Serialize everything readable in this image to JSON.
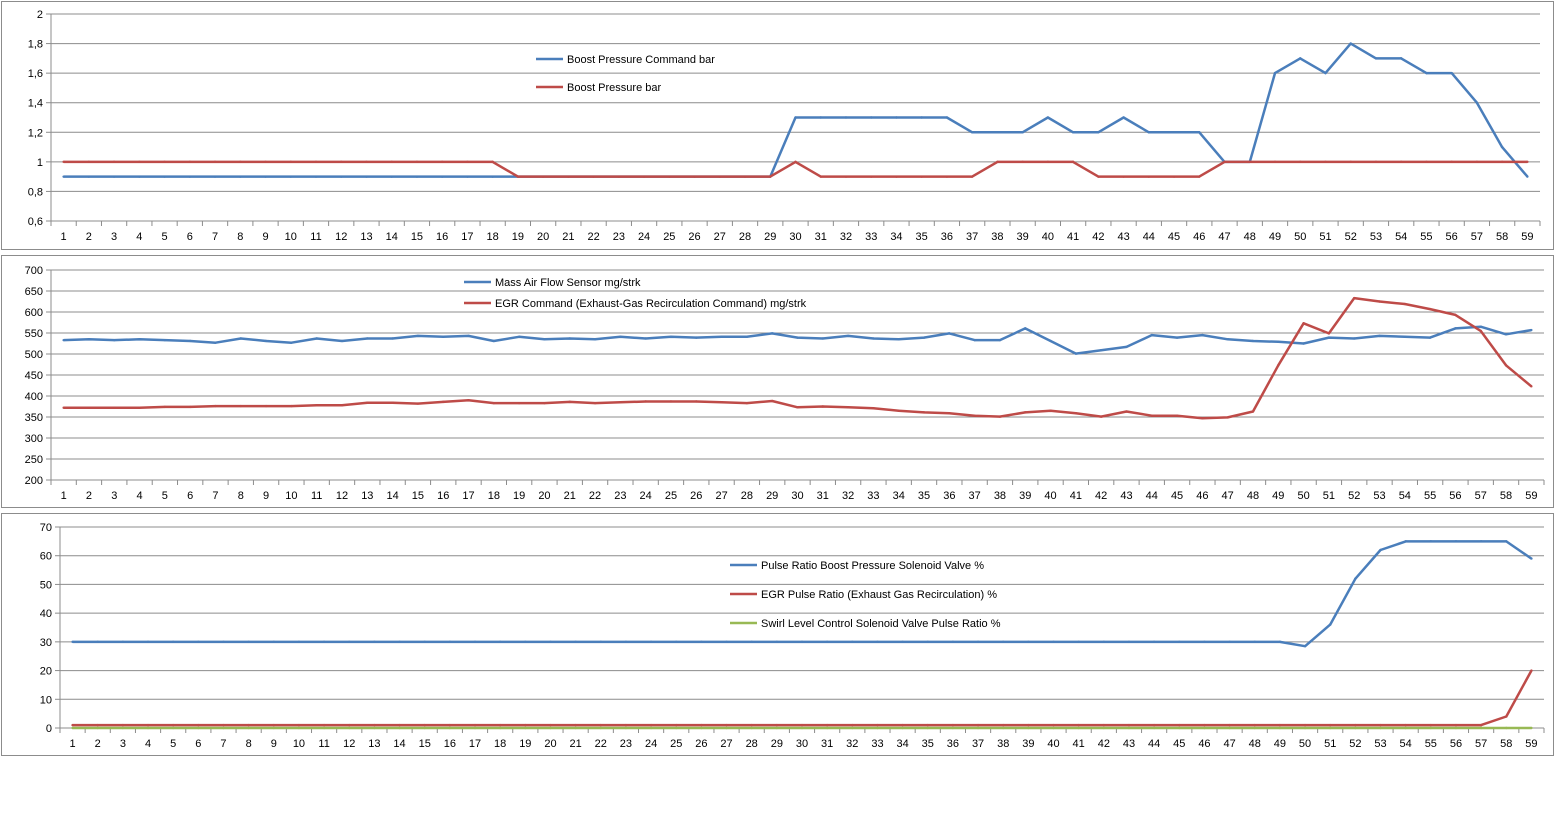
{
  "chart_data": [
    {
      "type": "line",
      "x": [
        1,
        2,
        3,
        4,
        5,
        6,
        7,
        8,
        9,
        10,
        11,
        12,
        13,
        14,
        15,
        16,
        17,
        18,
        19,
        20,
        21,
        22,
        23,
        24,
        25,
        26,
        27,
        28,
        29,
        30,
        31,
        32,
        33,
        34,
        35,
        36,
        37,
        38,
        39,
        40,
        41,
        42,
        43,
        44,
        45,
        46,
        47,
        48,
        49,
        50,
        51,
        52,
        53,
        54,
        55,
        56,
        57,
        58,
        59
      ],
      "ylim": [
        0.6,
        2
      ],
      "yticks": [
        "0,6",
        "0,8",
        "1",
        "1,2",
        "1,4",
        "1,6",
        "1,8",
        "2"
      ],
      "ytick_values": [
        0.6,
        0.8,
        1,
        1.2,
        1.4,
        1.6,
        1.8,
        2
      ],
      "grid": true,
      "legend_position": "top-center",
      "series": [
        {
          "name": "Boost Pressure Command  bar",
          "color": "#4a7ebb",
          "values": [
            0.9,
            0.9,
            0.9,
            0.9,
            0.9,
            0.9,
            0.9,
            0.9,
            0.9,
            0.9,
            0.9,
            0.9,
            0.9,
            0.9,
            0.9,
            0.9,
            0.9,
            0.9,
            0.9,
            0.9,
            0.9,
            0.9,
            0.9,
            0.9,
            0.9,
            0.9,
            0.9,
            0.9,
            0.9,
            1.3,
            1.3,
            1.3,
            1.3,
            1.3,
            1.3,
            1.3,
            1.2,
            1.2,
            1.2,
            1.3,
            1.2,
            1.2,
            1.3,
            1.2,
            1.2,
            1.2,
            1.0,
            1.0,
            1.6,
            1.7,
            1.6,
            1.8,
            1.7,
            1.7,
            1.6,
            1.6,
            1.4,
            1.1,
            0.9
          ]
        },
        {
          "name": "Boost Pressure bar",
          "color": "#be4b48",
          "values": [
            1.0,
            1.0,
            1.0,
            1.0,
            1.0,
            1.0,
            1.0,
            1.0,
            1.0,
            1.0,
            1.0,
            1.0,
            1.0,
            1.0,
            1.0,
            1.0,
            1.0,
            1.0,
            0.9,
            0.9,
            0.9,
            0.9,
            0.9,
            0.9,
            0.9,
            0.9,
            0.9,
            0.9,
            0.9,
            1.0,
            0.9,
            0.9,
            0.9,
            0.9,
            0.9,
            0.9,
            0.9,
            1.0,
            1.0,
            1.0,
            1.0,
            0.9,
            0.9,
            0.9,
            0.9,
            0.9,
            1.0,
            1.0,
            1.0,
            1.0,
            1.0,
            1.0,
            1.0,
            1.0,
            1.0,
            1.0,
            1.0,
            1.0,
            1.0
          ]
        }
      ]
    },
    {
      "type": "line",
      "x": [
        1,
        2,
        3,
        4,
        5,
        6,
        7,
        8,
        9,
        10,
        11,
        12,
        13,
        14,
        15,
        16,
        17,
        18,
        19,
        20,
        21,
        22,
        23,
        24,
        25,
        26,
        27,
        28,
        29,
        30,
        31,
        32,
        33,
        34,
        35,
        36,
        37,
        38,
        39,
        40,
        41,
        42,
        43,
        44,
        45,
        46,
        47,
        48,
        49,
        50,
        51,
        52,
        53,
        54,
        55,
        56,
        57,
        58,
        59
      ],
      "ylim": [
        200,
        700
      ],
      "yticks": [
        "200",
        "250",
        "300",
        "350",
        "400",
        "450",
        "500",
        "550",
        "600",
        "650",
        "700"
      ],
      "ytick_values": [
        200,
        250,
        300,
        350,
        400,
        450,
        500,
        550,
        600,
        650,
        700
      ],
      "grid": true,
      "legend_position": "top-center",
      "series": [
        {
          "name": "Mass Air Flow Sensor mg/strk",
          "color": "#4a7ebb",
          "values": [
            533,
            535,
            533,
            535,
            533,
            531,
            527,
            537,
            531,
            527,
            537,
            531,
            537,
            537,
            543,
            541,
            543,
            531,
            541,
            535,
            537,
            535,
            541,
            537,
            541,
            539,
            541,
            541,
            549,
            539,
            537,
            543,
            537,
            535,
            539,
            549,
            533,
            533,
            561,
            531,
            501,
            509,
            517,
            545,
            539,
            545,
            535,
            531,
            529,
            525,
            539,
            537,
            543,
            541,
            539,
            561,
            565,
            547,
            557
          ]
        },
        {
          "name": "EGR Command  (Exhaust-Gas  Recirculation Command)  mg/strk",
          "color": "#be4b48",
          "values": [
            372,
            372,
            372,
            372,
            374,
            374,
            376,
            376,
            376,
            376,
            378,
            378,
            384,
            384,
            382,
            386,
            390,
            383,
            383,
            383,
            386,
            383,
            385,
            387,
            387,
            387,
            385,
            383,
            388,
            373,
            375,
            373,
            371,
            365,
            361,
            359,
            353,
            351,
            361,
            365,
            359,
            351,
            363,
            353,
            353,
            347,
            349,
            363,
            473,
            573,
            549,
            633,
            625,
            619,
            607,
            593,
            555,
            473,
            423
          ]
        }
      ]
    },
    {
      "type": "line",
      "x": [
        1,
        2,
        3,
        4,
        5,
        6,
        7,
        8,
        9,
        10,
        11,
        12,
        13,
        14,
        15,
        16,
        17,
        18,
        19,
        20,
        21,
        22,
        23,
        24,
        25,
        26,
        27,
        28,
        29,
        30,
        31,
        32,
        33,
        34,
        35,
        36,
        37,
        38,
        39,
        40,
        41,
        42,
        43,
        44,
        45,
        46,
        47,
        48,
        49,
        50,
        51,
        52,
        53,
        54,
        55,
        56,
        57,
        58,
        59
      ],
      "ylim": [
        0,
        70
      ],
      "yticks": [
        "0",
        "10",
        "20",
        "30",
        "40",
        "50",
        "60",
        "70"
      ],
      "ytick_values": [
        0,
        10,
        20,
        30,
        40,
        50,
        60,
        70
      ],
      "grid": true,
      "legend_position": "top-center",
      "series": [
        {
          "name": "Pulse Ratio Boost Pressure Solenoid Valve  %",
          "color": "#4a7ebb",
          "values": [
            30,
            30,
            30,
            30,
            30,
            30,
            30,
            30,
            30,
            30,
            30,
            30,
            30,
            30,
            30,
            30,
            30,
            30,
            30,
            30,
            30,
            30,
            30,
            30,
            30,
            30,
            30,
            30,
            30,
            30,
            30,
            30,
            30,
            30,
            30,
            30,
            30,
            30,
            30,
            30,
            30,
            30,
            30,
            30,
            30,
            30,
            30,
            30,
            30,
            28.5,
            36,
            52,
            62,
            65,
            65,
            65,
            65,
            65,
            59
          ]
        },
        {
          "name": "EGR Pulse Ratio  (Exhaust  Gas  Recirculation)  %",
          "color": "#be4b48",
          "values": [
            1,
            1,
            1,
            1,
            1,
            1,
            1,
            1,
            1,
            1,
            1,
            1,
            1,
            1,
            1,
            1,
            1,
            1,
            1,
            1,
            1,
            1,
            1,
            1,
            1,
            1,
            1,
            1,
            1,
            1,
            1,
            1,
            1,
            1,
            1,
            1,
            1,
            1,
            1,
            1,
            1,
            1,
            1,
            1,
            1,
            1,
            1,
            1,
            1,
            1,
            1,
            1,
            1,
            1,
            1,
            1,
            1,
            4,
            20
          ]
        },
        {
          "name": "Swirl Level Control Solenoid Valve Pulse Ratio  %",
          "color": "#98b954",
          "values": [
            0,
            0,
            0,
            0,
            0,
            0,
            0,
            0,
            0,
            0,
            0,
            0,
            0,
            0,
            0,
            0,
            0,
            0,
            0,
            0,
            0,
            0,
            0,
            0,
            0,
            0,
            0,
            0,
            0,
            0,
            0,
            0,
            0,
            0,
            0,
            0,
            0,
            0,
            0,
            0,
            0,
            0,
            0,
            0,
            0,
            0,
            0,
            0,
            0,
            0,
            0,
            0,
            0,
            0,
            0,
            0,
            0,
            0,
            0
          ]
        }
      ]
    }
  ]
}
